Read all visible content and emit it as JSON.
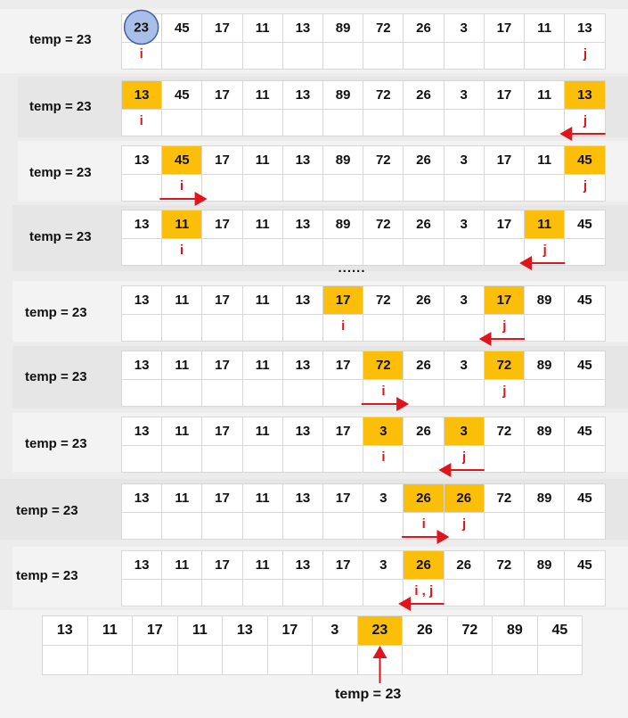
{
  "temp_label": "temp = 23",
  "ellipsis": "......",
  "colors": {
    "highlight": "#fbbf0a",
    "pointer": "#e0141b",
    "circle_fill": "#a9bfe8",
    "circle_stroke": "#3f5fae"
  },
  "steps": [
    {
      "values": [
        "23",
        "45",
        "17",
        "11",
        "13",
        "89",
        "72",
        "26",
        "3",
        "17",
        "11",
        "13"
      ],
      "highlight": [],
      "circled": 0,
      "pointers": [
        {
          "text": "i",
          "index": 0
        },
        {
          "text": "j",
          "index": 11
        }
      ],
      "arrows": []
    },
    {
      "values": [
        "13",
        "45",
        "17",
        "11",
        "13",
        "89",
        "72",
        "26",
        "3",
        "17",
        "11",
        "13"
      ],
      "highlight": [
        0,
        11
      ],
      "pointers": [
        {
          "text": "i",
          "index": 0
        },
        {
          "text": "j",
          "index": 11
        }
      ],
      "arrows": [
        {
          "index": 11,
          "dir": "left"
        }
      ]
    },
    {
      "values": [
        "13",
        "45",
        "17",
        "11",
        "13",
        "89",
        "72",
        "26",
        "3",
        "17",
        "11",
        "45"
      ],
      "highlight": [
        1,
        11
      ],
      "pointers": [
        {
          "text": "i",
          "index": 1
        },
        {
          "text": "j",
          "index": 11
        }
      ],
      "arrows": [
        {
          "index": 1,
          "dir": "right"
        }
      ]
    },
    {
      "values": [
        "13",
        "11",
        "17",
        "11",
        "13",
        "89",
        "72",
        "26",
        "3",
        "17",
        "11",
        "45"
      ],
      "highlight": [
        1,
        10
      ],
      "pointers": [
        {
          "text": "i",
          "index": 1
        },
        {
          "text": "j",
          "index": 10
        }
      ],
      "arrows": [
        {
          "index": 10,
          "dir": "left"
        }
      ]
    },
    {
      "values": [
        "13",
        "11",
        "17",
        "11",
        "13",
        "17",
        "72",
        "26",
        "3",
        "17",
        "89",
        "45"
      ],
      "highlight": [
        5,
        9
      ],
      "pointers": [
        {
          "text": "i",
          "index": 5
        },
        {
          "text": "j",
          "index": 9
        }
      ],
      "arrows": [
        {
          "index": 9,
          "dir": "left"
        }
      ]
    },
    {
      "values": [
        "13",
        "11",
        "17",
        "11",
        "13",
        "17",
        "72",
        "26",
        "3",
        "72",
        "89",
        "45"
      ],
      "highlight": [
        6,
        9
      ],
      "pointers": [
        {
          "text": "i",
          "index": 6
        },
        {
          "text": "j",
          "index": 9
        }
      ],
      "arrows": [
        {
          "index": 6,
          "dir": "right"
        }
      ]
    },
    {
      "values": [
        "13",
        "11",
        "17",
        "11",
        "13",
        "17",
        "3",
        "26",
        "3",
        "72",
        "89",
        "45"
      ],
      "highlight": [
        6,
        8
      ],
      "pointers": [
        {
          "text": "i",
          "index": 6
        },
        {
          "text": "j",
          "index": 8
        }
      ],
      "arrows": [
        {
          "index": 8,
          "dir": "left"
        }
      ]
    },
    {
      "values": [
        "13",
        "11",
        "17",
        "11",
        "13",
        "17",
        "3",
        "26",
        "26",
        "72",
        "89",
        "45"
      ],
      "highlight": [
        7,
        8
      ],
      "pointers": [
        {
          "text": "i",
          "index": 7
        },
        {
          "text": "j",
          "index": 8
        }
      ],
      "arrows": [
        {
          "index": 7,
          "dir": "right"
        }
      ]
    },
    {
      "values": [
        "13",
        "11",
        "17",
        "11",
        "13",
        "17",
        "3",
        "26",
        "26",
        "72",
        "89",
        "45"
      ],
      "highlight": [
        7
      ],
      "pointers": [
        {
          "text": "i , j",
          "index": 7
        }
      ],
      "arrows": [
        {
          "index": 7,
          "dir": "left"
        }
      ]
    }
  ],
  "final": {
    "values": [
      "13",
      "11",
      "17",
      "11",
      "13",
      "17",
      "3",
      "23",
      "26",
      "72",
      "89",
      "45"
    ],
    "highlight": [
      7
    ],
    "label": "temp = 23",
    "arrow_index": 7
  }
}
